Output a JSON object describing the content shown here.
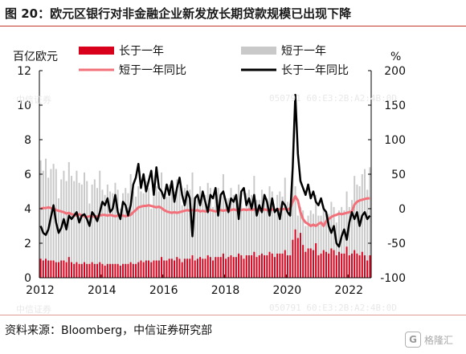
{
  "title": "图 20：欧元区银行对非金融企业新发放长期贷款规模已出现下降",
  "source": "资料来源：Bloomberg，中信证券研究部",
  "watermark": {
    "left_text": "中信证券",
    "right_text": "050791  60:E3:2B:A2:4B:0D"
  },
  "logo_text": "格隆汇",
  "colors": {
    "long_bar": "#d9001b",
    "short_bar": "#c9c9c9",
    "short_yoy": "#f2707a",
    "long_yoy": "#000000",
    "frame": "#c0392b"
  },
  "chart_data": {
    "type": "bar",
    "left_axis_unit": "百亿欧元",
    "right_axis_unit": "%",
    "ylim_left": [
      0,
      12
    ],
    "ylim_right": [
      -100,
      200
    ],
    "left_ticks": [
      0,
      2,
      4,
      6,
      8,
      10,
      12
    ],
    "right_ticks": [
      -100,
      -50,
      0,
      50,
      100,
      150,
      200
    ],
    "x_ticks": [
      "2012",
      "2014",
      "2016",
      "2018",
      "2020",
      "2022"
    ],
    "legend": [
      {
        "label": "长于一年",
        "kind": "bar",
        "color": "#d9001b"
      },
      {
        "label": "短于一年",
        "kind": "bar",
        "color": "#c9c9c9"
      },
      {
        "label": "短于一年同比",
        "kind": "line",
        "color": "#f2707a"
      },
      {
        "label": "长于一年同比",
        "kind": "line",
        "color": "#000000"
      }
    ],
    "x_start": "2012-01",
    "x_end": "2022-09",
    "series": [
      {
        "name": "长于一年",
        "axis": "left",
        "values": [
          1.1,
          1.0,
          1.1,
          1.0,
          1.0,
          1.0,
          0.9,
          0.9,
          1.0,
          1.0,
          0.9,
          1.2,
          0.9,
          0.8,
          0.9,
          0.8,
          0.8,
          0.9,
          0.8,
          0.8,
          0.9,
          0.8,
          0.8,
          0.9,
          0.8,
          0.7,
          0.8,
          0.8,
          0.8,
          0.8,
          0.8,
          0.7,
          0.8,
          0.8,
          0.8,
          0.9,
          0.8,
          0.8,
          0.9,
          1.0,
          0.9,
          1.0,
          1.0,
          0.9,
          1.0,
          1.0,
          1.0,
          1.2,
          1.0,
          1.0,
          1.1,
          1.1,
          1.0,
          1.2,
          1.1,
          0.9,
          1.1,
          1.1,
          1.1,
          1.3,
          1.0,
          1.1,
          1.2,
          1.1,
          1.1,
          1.3,
          1.2,
          1.0,
          1.2,
          1.2,
          1.2,
          1.4,
          1.1,
          1.2,
          1.3,
          1.2,
          1.2,
          1.4,
          1.3,
          1.1,
          1.3,
          1.3,
          1.3,
          1.5,
          1.2,
          1.3,
          1.4,
          1.3,
          1.3,
          1.5,
          1.4,
          1.2,
          1.4,
          1.4,
          1.4,
          1.6,
          1.3,
          1.3,
          2.2,
          2.8,
          2.3,
          2.6,
          1.9,
          1.5,
          1.7,
          1.7,
          1.6,
          2.0,
          1.3,
          1.4,
          1.6,
          1.5,
          1.4,
          1.7,
          1.6,
          1.3,
          1.5,
          1.4,
          1.4,
          1.8,
          1.3,
          1.4,
          1.6,
          1.4,
          1.3,
          1.5,
          1.3,
          1.0,
          1.3
        ]
      },
      {
        "name": "短于一年",
        "axis": "left",
        "values": [
          6.8,
          6.2,
          6.9,
          5.8,
          6.3,
          6.6,
          6.3,
          4.6,
          5.7,
          6.2,
          5.6,
          6.7,
          5.9,
          5.6,
          6.2,
          5.5,
          5.4,
          6.1,
          5.6,
          4.3,
          5.4,
          5.7,
          5.2,
          6.2,
          5.1,
          4.8,
          5.4,
          5.0,
          4.9,
          5.5,
          5.1,
          4.0,
          4.9,
          5.2,
          4.9,
          6.0,
          5.0,
          4.7,
          5.3,
          5.0,
          4.9,
          5.6,
          5.2,
          4.0,
          5.1,
          5.3,
          5.0,
          6.1,
          4.8,
          4.7,
          5.4,
          5.1,
          5.0,
          5.7,
          5.3,
          4.2,
          5.2,
          5.4,
          5.1,
          6.1,
          4.7,
          4.6,
          5.3,
          4.9,
          4.8,
          5.5,
          5.2,
          4.1,
          5.0,
          5.2,
          4.9,
          6.0,
          4.6,
          4.6,
          5.2,
          4.8,
          4.7,
          5.4,
          5.0,
          4.0,
          4.9,
          5.1,
          4.8,
          5.9,
          4.5,
          4.5,
          5.1,
          4.8,
          4.6,
          5.3,
          5.0,
          3.9,
          4.8,
          5.0,
          4.7,
          5.8,
          4.4,
          4.3,
          6.2,
          5.3,
          3.6,
          4.1,
          3.9,
          3.0,
          3.6,
          3.9,
          3.7,
          4.8,
          3.6,
          3.6,
          4.2,
          3.9,
          3.7,
          4.4,
          4.1,
          3.2,
          3.9,
          4.1,
          3.9,
          5.0,
          4.1,
          4.5,
          5.9,
          5.4,
          5.3,
          6.0,
          6.3,
          5.1,
          6.4
        ]
      },
      {
        "name": "短于一年同比",
        "axis": "right",
        "values": [
          0,
          1,
          1,
          2,
          1,
          0,
          -2,
          -3,
          -4,
          -5,
          -7,
          -6,
          -8,
          -9,
          -10,
          -8,
          -10,
          -11,
          -12,
          -11,
          -10,
          -12,
          -11,
          -10,
          -9,
          -9,
          -10,
          -9,
          -10,
          -11,
          -10,
          -9,
          -10,
          -11,
          -10,
          -9,
          -5,
          -2,
          2,
          3,
          4,
          4,
          5,
          4,
          3,
          2,
          3,
          1,
          -2,
          -4,
          -5,
          -6,
          -5,
          -6,
          -5,
          -4,
          -3,
          -2,
          -3,
          -2,
          -3,
          -2,
          -4,
          -3,
          -4,
          -3,
          -2,
          -3,
          -4,
          -3,
          -2,
          -3,
          -2,
          -3,
          -2,
          -1,
          -2,
          -3,
          -2,
          -1,
          -2,
          -1,
          -2,
          -1,
          -1,
          -2,
          -2,
          -1,
          -2,
          -2,
          -1,
          -2,
          -1,
          -1,
          -1,
          0,
          -2,
          1,
          10,
          18,
          12,
          -5,
          -15,
          -20,
          -22,
          -25,
          -23,
          -25,
          -22,
          -20,
          -25,
          -18,
          -15,
          -12,
          -10,
          -9,
          -7,
          -8,
          -7,
          -6,
          -5,
          -4,
          6,
          10,
          12,
          13,
          14,
          15,
          15
        ]
      },
      {
        "name": "长于一年同比",
        "axis": "right",
        "values": [
          -25,
          -35,
          -38,
          -30,
          -12,
          5,
          -20,
          -35,
          -28,
          -15,
          -30,
          -10,
          -15,
          -10,
          -5,
          -20,
          -10,
          -8,
          -15,
          -25,
          -5,
          -10,
          -18,
          -5,
          10,
          5,
          15,
          -5,
          0,
          20,
          -5,
          -15,
          10,
          5,
          -10,
          5,
          35,
          45,
          65,
          30,
          50,
          25,
          40,
          55,
          20,
          60,
          30,
          25,
          15,
          35,
          20,
          40,
          10,
          30,
          45,
          20,
          5,
          25,
          15,
          -40,
          15,
          20,
          5,
          25,
          10,
          -5,
          20,
          15,
          30,
          -10,
          20,
          25,
          10,
          -5,
          15,
          10,
          20,
          -15,
          25,
          30,
          5,
          15,
          0,
          20,
          -10,
          5,
          -5,
          20,
          10,
          -10,
          15,
          -5,
          0,
          -15,
          10,
          5,
          -5,
          -10,
          60,
          165,
          80,
          40,
          30,
          20,
          35,
          15,
          25,
          10,
          5,
          15,
          0,
          -5,
          -25,
          -35,
          -25,
          -50,
          -55,
          -40,
          -30,
          -45,
          -20,
          -5,
          -15,
          -5,
          -25,
          -10,
          -5,
          -15,
          -10
        ]
      }
    ]
  }
}
